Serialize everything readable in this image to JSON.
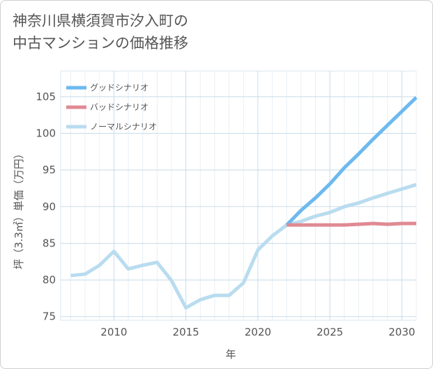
{
  "title_line1": "神奈川県横須賀市汐入町の",
  "title_line2": "中古マンションの価格推移",
  "chart_data": {
    "type": "line",
    "xlabel": "年",
    "ylabel": "坪（3.3㎡）単価（万円）",
    "xlim": [
      2006.3,
      2031
    ],
    "ylim": [
      74.5,
      108.5
    ],
    "x_ticks": [
      2010,
      2015,
      2020,
      2025,
      2030
    ],
    "y_ticks": [
      75,
      80,
      85,
      90,
      95,
      100,
      105
    ],
    "grid": true,
    "legend_position": "top-left",
    "series": [
      {
        "name": "グッドシナリオ",
        "color": "#6cb9ef",
        "x": [
          2022,
          2023,
          2024,
          2025,
          2026,
          2027,
          2028,
          2029,
          2030,
          2031
        ],
        "y": [
          87.5,
          89.5,
          91.2,
          93.1,
          95.3,
          97.2,
          99.2,
          101.1,
          103.0,
          104.9
        ]
      },
      {
        "name": "バッドシナリオ",
        "color": "#e08a93",
        "x": [
          2022,
          2023,
          2024,
          2025,
          2026,
          2027,
          2028,
          2029,
          2030,
          2031
        ],
        "y": [
          87.5,
          87.5,
          87.5,
          87.5,
          87.5,
          87.6,
          87.7,
          87.6,
          87.7,
          87.7
        ]
      },
      {
        "name": "ノーマルシナリオ",
        "color": "#b9dcef",
        "x": [
          2007,
          2008,
          2009,
          2010,
          2011,
          2012,
          2013,
          2014,
          2015,
          2016,
          2017,
          2018,
          2019,
          2020,
          2021,
          2022,
          2023,
          2024,
          2025,
          2026,
          2027,
          2028,
          2029,
          2030,
          2031
        ],
        "y": [
          80.6,
          80.8,
          82.0,
          83.9,
          81.5,
          82.0,
          82.4,
          79.9,
          76.2,
          77.3,
          77.9,
          77.9,
          79.6,
          84.1,
          86.0,
          87.5,
          88.0,
          88.7,
          89.2,
          90.0,
          90.5,
          91.2,
          91.8,
          92.4,
          93.0
        ]
      }
    ]
  }
}
